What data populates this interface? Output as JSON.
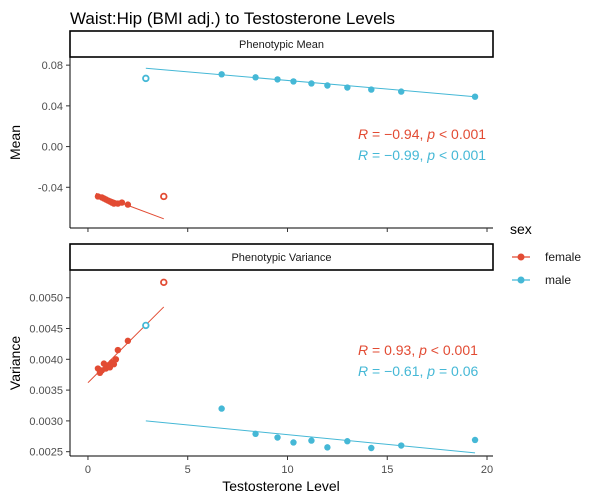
{
  "title": "Waist:Hip (BMI adj.) to Testosterone Levels",
  "x_axis_label": "Testosterone Level",
  "legend": {
    "title": "sex",
    "items": [
      {
        "label": "female",
        "color": "#E24B33"
      },
      {
        "label": "male",
        "color": "#45B8D6"
      }
    ]
  },
  "chart_data": [
    {
      "type": "scatter",
      "panel_title": "Phenotypic Mean",
      "ylabel": "Mean",
      "xlim": [
        -0.9,
        20.3
      ],
      "ylim": [
        -0.08,
        0.088
      ],
      "x_ticks": [
        0,
        5,
        10,
        15,
        20
      ],
      "x_tick_labels": [
        "0",
        "5",
        "10",
        "15",
        "20"
      ],
      "y_ticks": [
        -0.04,
        0,
        0.04,
        0.08
      ],
      "y_tick_labels": [
        "-0.04",
        "0.00",
        "0.04",
        "0.08"
      ],
      "grid": false,
      "series": [
        {
          "name": "female",
          "color": "#E24B33",
          "x": [
            0.5,
            0.7,
            0.8,
            0.9,
            1.0,
            1.1,
            1.2,
            1.3,
            1.5,
            1.7,
            2.0
          ],
          "y": [
            -0.049,
            -0.05,
            -0.051,
            -0.052,
            -0.053,
            -0.054,
            -0.055,
            -0.056,
            -0.056,
            -0.055,
            -0.057
          ],
          "fit": {
            "x": [
              0.4,
              3.8
            ],
            "y": [
              -0.046,
              -0.071
            ]
          },
          "outlier": {
            "x": 3.8,
            "y": -0.049
          }
        },
        {
          "name": "male",
          "color": "#45B8D6",
          "x": [
            6.7,
            8.4,
            9.5,
            10.3,
            11.2,
            12.0,
            13.0,
            14.2,
            15.7,
            19.4
          ],
          "y": [
            0.071,
            0.068,
            0.066,
            0.064,
            0.062,
            0.06,
            0.058,
            0.056,
            0.054,
            0.049
          ],
          "fit": {
            "x": [
              2.9,
              19.4
            ],
            "y": [
              0.077,
              0.049
            ]
          },
          "outlier": {
            "x": 2.9,
            "y": 0.067
          }
        }
      ],
      "annotations": [
        {
          "color": "#E24B33",
          "r_value": "−0.94",
          "p_text": " < 0.001"
        },
        {
          "color": "#45B8D6",
          "r_value": "−0.99",
          "p_text": " < 0.001"
        }
      ]
    },
    {
      "type": "scatter",
      "panel_title": "Phenotypic Variance",
      "ylabel": "Variance",
      "xlim": [
        -0.9,
        20.3
      ],
      "ylim": [
        0.00243,
        0.00545
      ],
      "x_ticks": [
        0,
        5,
        10,
        15,
        20
      ],
      "x_tick_labels": [
        "0",
        "5",
        "10",
        "15",
        "20"
      ],
      "y_ticks": [
        0.0025,
        0.003,
        0.0035,
        0.004,
        0.0045,
        0.005
      ],
      "y_tick_labels": [
        "0.0025",
        "0.0030",
        "0.0035",
        "0.0040",
        "0.0045",
        "0.0050"
      ],
      "grid": false,
      "series": [
        {
          "name": "female",
          "color": "#E24B33",
          "x": [
            0.5,
            0.6,
            0.7,
            0.8,
            0.9,
            1.0,
            1.1,
            1.2,
            1.3,
            1.4,
            1.5,
            2.0
          ],
          "y": [
            0.00385,
            0.00378,
            0.00382,
            0.00393,
            0.00385,
            0.0039,
            0.00387,
            0.00395,
            0.00392,
            0.004,
            0.00415,
            0.0043
          ],
          "fit": {
            "x": [
              0.0,
              3.8
            ],
            "y": [
              0.00362,
              0.00485
            ]
          },
          "outlier": {
            "x": 3.8,
            "y": 0.00525
          }
        },
        {
          "name": "male",
          "color": "#45B8D6",
          "x": [
            6.7,
            8.4,
            9.5,
            10.3,
            11.2,
            12.0,
            13.0,
            14.2,
            15.7,
            19.4
          ],
          "y": [
            0.0032,
            0.00279,
            0.00273,
            0.00265,
            0.00268,
            0.00257,
            0.00267,
            0.00256,
            0.0026,
            0.00269
          ],
          "fit": {
            "x": [
              2.9,
              19.4
            ],
            "y": [
              0.003,
              0.00248
            ]
          },
          "outlier": {
            "x": 2.9,
            "y": 0.00455
          }
        }
      ],
      "annotations": [
        {
          "color": "#E24B33",
          "r_value": "0.93",
          "p_text": " < 0.001"
        },
        {
          "color": "#45B8D6",
          "r_value": "−0.61",
          "p_text": " = 0.06"
        }
      ]
    }
  ]
}
